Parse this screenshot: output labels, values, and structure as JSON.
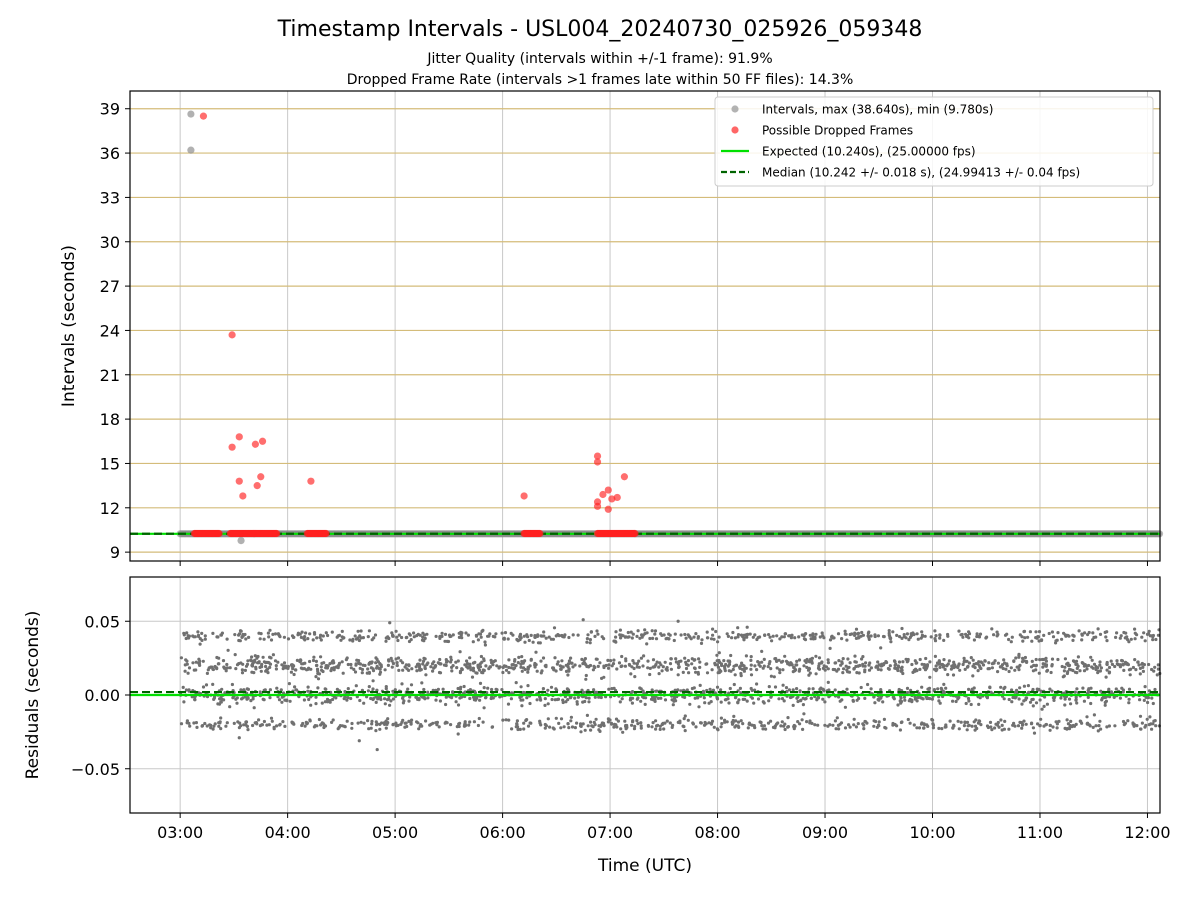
{
  "figure": {
    "title": "Timestamp Intervals - USL004_20240730_025926_059348",
    "subtitle_1": "Jitter Quality (intervals within +/-1 frame): 91.9%",
    "subtitle_2": "Dropped Frame Rate (intervals >1 frames late within 50 FF files): 14.3%"
  },
  "chart_data": [
    {
      "type": "scatter",
      "panel": "intervals",
      "xlabel": "",
      "ylabel": "Intervals (seconds)",
      "x_unit": "time (UTC)",
      "xlim": [
        "02:32",
        "12:07"
      ],
      "ylim": [
        8.4,
        40.2
      ],
      "yticks": [
        9,
        12,
        15,
        18,
        21,
        24,
        27,
        30,
        33,
        36,
        39
      ],
      "grid": {
        "x": true,
        "y": true,
        "y_color": "#d4bc7a",
        "x_color": "#c8c8c8"
      },
      "legend": {
        "placement": "top-right",
        "entries": [
          {
            "label": "Intervals, max (38.640s), min (9.780s)",
            "marker": "circle",
            "color": "#a0a0a0"
          },
          {
            "label": "Possible Dropped Frames",
            "marker": "circle",
            "color": "#ff4040"
          },
          {
            "label": "Expected (10.240s), (25.00000 fps)",
            "marker": "line",
            "color": "#00e000"
          },
          {
            "label": "Median (10.242 +/- 0.018 s), (24.99413 +/- 0.04 fps)",
            "marker": "dashed",
            "color": "#006400"
          }
        ]
      },
      "series": [
        {
          "name": "Intervals, max (38.640s), min (9.780s)",
          "color": "#808080",
          "baseline_value": 10.24,
          "baseline_range": [
            "03:00",
            "12:07"
          ],
          "points": [
            {
              "x": "03:06",
              "y": 38.64
            },
            {
              "x": "03:06",
              "y": 36.2
            },
            {
              "x": "03:34",
              "y": 9.78
            }
          ]
        },
        {
          "name": "Possible Dropped Frames",
          "color": "#ff2020",
          "baseline_value": 10.26,
          "baseline_segments": [
            [
              "03:08",
              "03:22"
            ],
            [
              "03:28",
              "03:54"
            ],
            [
              "04:11",
              "04:22"
            ],
            [
              "06:12",
              "06:21"
            ],
            [
              "06:53",
              "07:14"
            ]
          ],
          "points": [
            {
              "x": "03:13",
              "y": 38.5
            },
            {
              "x": "03:29",
              "y": 23.7
            },
            {
              "x": "03:29",
              "y": 16.1
            },
            {
              "x": "03:33",
              "y": 16.8
            },
            {
              "x": "03:33",
              "y": 13.8
            },
            {
              "x": "03:35",
              "y": 12.8
            },
            {
              "x": "03:42",
              "y": 16.3
            },
            {
              "x": "03:43",
              "y": 13.5
            },
            {
              "x": "03:45",
              "y": 14.1
            },
            {
              "x": "03:46",
              "y": 16.5
            },
            {
              "x": "04:13",
              "y": 13.8
            },
            {
              "x": "06:12",
              "y": 12.8
            },
            {
              "x": "06:53",
              "y": 15.5
            },
            {
              "x": "06:53",
              "y": 15.1
            },
            {
              "x": "06:53",
              "y": 12.4
            },
            {
              "x": "06:53",
              "y": 12.1
            },
            {
              "x": "06:56",
              "y": 12.9
            },
            {
              "x": "06:59",
              "y": 13.2
            },
            {
              "x": "06:59",
              "y": 11.9
            },
            {
              "x": "07:01",
              "y": 12.6
            },
            {
              "x": "07:04",
              "y": 12.7
            },
            {
              "x": "07:08",
              "y": 14.1
            }
          ]
        },
        {
          "name": "Expected (10.240s), (25.00000 fps)",
          "type": "hline",
          "y": 10.24,
          "color": "#00e000"
        },
        {
          "name": "Median (10.242 +/- 0.018 s), (24.99413 +/- 0.04 fps)",
          "type": "hline",
          "y": 10.242,
          "color": "#006400",
          "style": "dashed"
        }
      ]
    },
    {
      "type": "scatter",
      "panel": "residuals",
      "xlabel": "Time (UTC)",
      "ylabel": "Residuals (seconds)",
      "xlim": [
        "02:32",
        "12:07"
      ],
      "ylim": [
        -0.08,
        0.08
      ],
      "yticks": [
        -0.05,
        0.0,
        0.05
      ],
      "ytick_labels": [
        "−0.05",
        "0.00",
        "0.05"
      ],
      "xticks": [
        "03:00",
        "04:00",
        "05:00",
        "06:00",
        "07:00",
        "08:00",
        "09:00",
        "10:00",
        "11:00",
        "12:00"
      ],
      "grid": {
        "x": true,
        "y": true,
        "color": "#c8c8c8"
      },
      "series": [
        {
          "name": "",
          "color": "#707070",
          "x_range": [
            "03:00",
            "12:07"
          ],
          "levels": [
            {
              "y": 0.04,
              "spread": 0.002,
              "count": 560
            },
            {
              "y": 0.02,
              "spread": 0.003,
              "count": 1000
            },
            {
              "y": 0.0,
              "spread": 0.003,
              "count": 1000
            },
            {
              "y": -0.02,
              "spread": 0.002,
              "count": 560
            }
          ],
          "outliers": [
            {
              "x": "04:50",
              "y": -0.037
            },
            {
              "x": "04:57",
              "y": 0.049
            },
            {
              "x": "06:45",
              "y": 0.051
            },
            {
              "x": "07:38",
              "y": 0.05
            },
            {
              "x": "03:33",
              "y": -0.029
            },
            {
              "x": "04:40",
              "y": -0.031
            }
          ]
        },
        {
          "name": "",
          "type": "hline",
          "y": 0.0,
          "color": "#00e000"
        },
        {
          "name": "",
          "type": "hline",
          "y": 0.002,
          "color": "#006400",
          "style": "dashed"
        }
      ]
    }
  ]
}
